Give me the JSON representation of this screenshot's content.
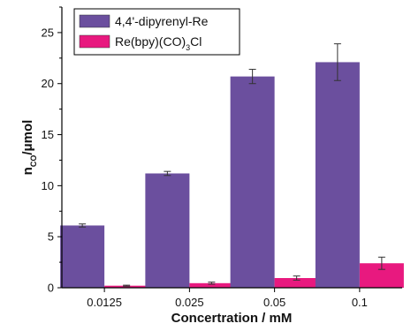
{
  "chart_data": {
    "type": "bar",
    "categories": [
      "0.0125",
      "0.025",
      "0.05",
      "0.1"
    ],
    "xlabel": "Concertration / mM",
    "ylabel": {
      "base": "n",
      "sub": "CO",
      "suffix": "/μmol"
    },
    "ylim": [
      0,
      27.5
    ],
    "yticks": [
      0,
      5,
      10,
      15,
      20,
      25
    ],
    "grid": false,
    "legend_position": "top-left",
    "series": [
      {
        "name": "4,4'-dipyrenyl-Re",
        "color": "#6b4f9e",
        "values": [
          6.1,
          11.2,
          20.7,
          22.1
        ],
        "errors": [
          0.15,
          0.2,
          0.7,
          1.8
        ]
      },
      {
        "name": "Re(bpy)(CO)3Cl",
        "name_parts": {
          "a": "Re(bpy)(CO)",
          "sub": "3",
          "b": "Cl"
        },
        "color": "#e8197f",
        "values": [
          0.2,
          0.45,
          0.95,
          2.4
        ],
        "errors": [
          0.05,
          0.1,
          0.2,
          0.6
        ]
      }
    ]
  }
}
